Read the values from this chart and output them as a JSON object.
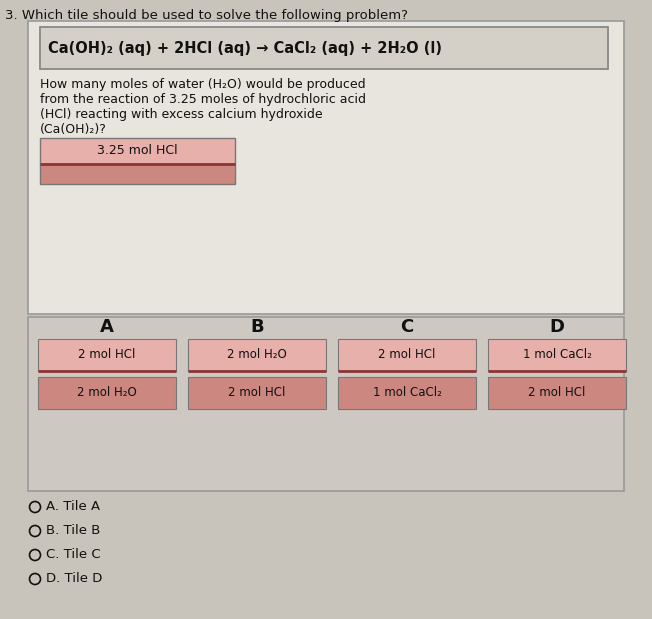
{
  "question_number": "3. Which tile should be used to solve the following problem?",
  "equation": "Ca(OH)₂ (aq) + 2HCl (aq) → CaCl₂ (aq) + 2H₂O (l)",
  "problem_text_lines": [
    "How many moles of water (H₂O) would be produced",
    "from the reaction of 3.25 moles of hydrochloric acid",
    "(HCl) reacting with excess calcium hydroxide",
    "(Ca(OH)₂)?"
  ],
  "given_label": "3.25 mol HCl",
  "tile_labels": [
    "A",
    "B",
    "C",
    "D"
  ],
  "tile_top": [
    "2 mol HCl",
    "2 mol H₂O",
    "2 mol HCl",
    "1 mol CaCl₂"
  ],
  "tile_bottom": [
    "2 mol H₂O",
    "2 mol HCl",
    "1 mol CaCl₂",
    "2 mol HCl"
  ],
  "answer_choices": [
    "A. Tile A",
    "B. Tile B",
    "C. Tile C",
    "D. Tile D"
  ],
  "bg_outer": "#c8c4bc",
  "panel_upper_bg": "#e8e4de",
  "panel_upper_border": "#999999",
  "panel_lower_bg": "#cdc9c2",
  "eq_box_bg": "#d4d0c8",
  "eq_box_border": "#888888",
  "tile_top_color": "#e8b0aa",
  "tile_bottom_color": "#cc8880",
  "tile_border": "#777777",
  "tile_divider": "#8b3535",
  "given_top_color": "#cc8880",
  "given_bottom_color": "#bb7070",
  "text_color": "#111111"
}
